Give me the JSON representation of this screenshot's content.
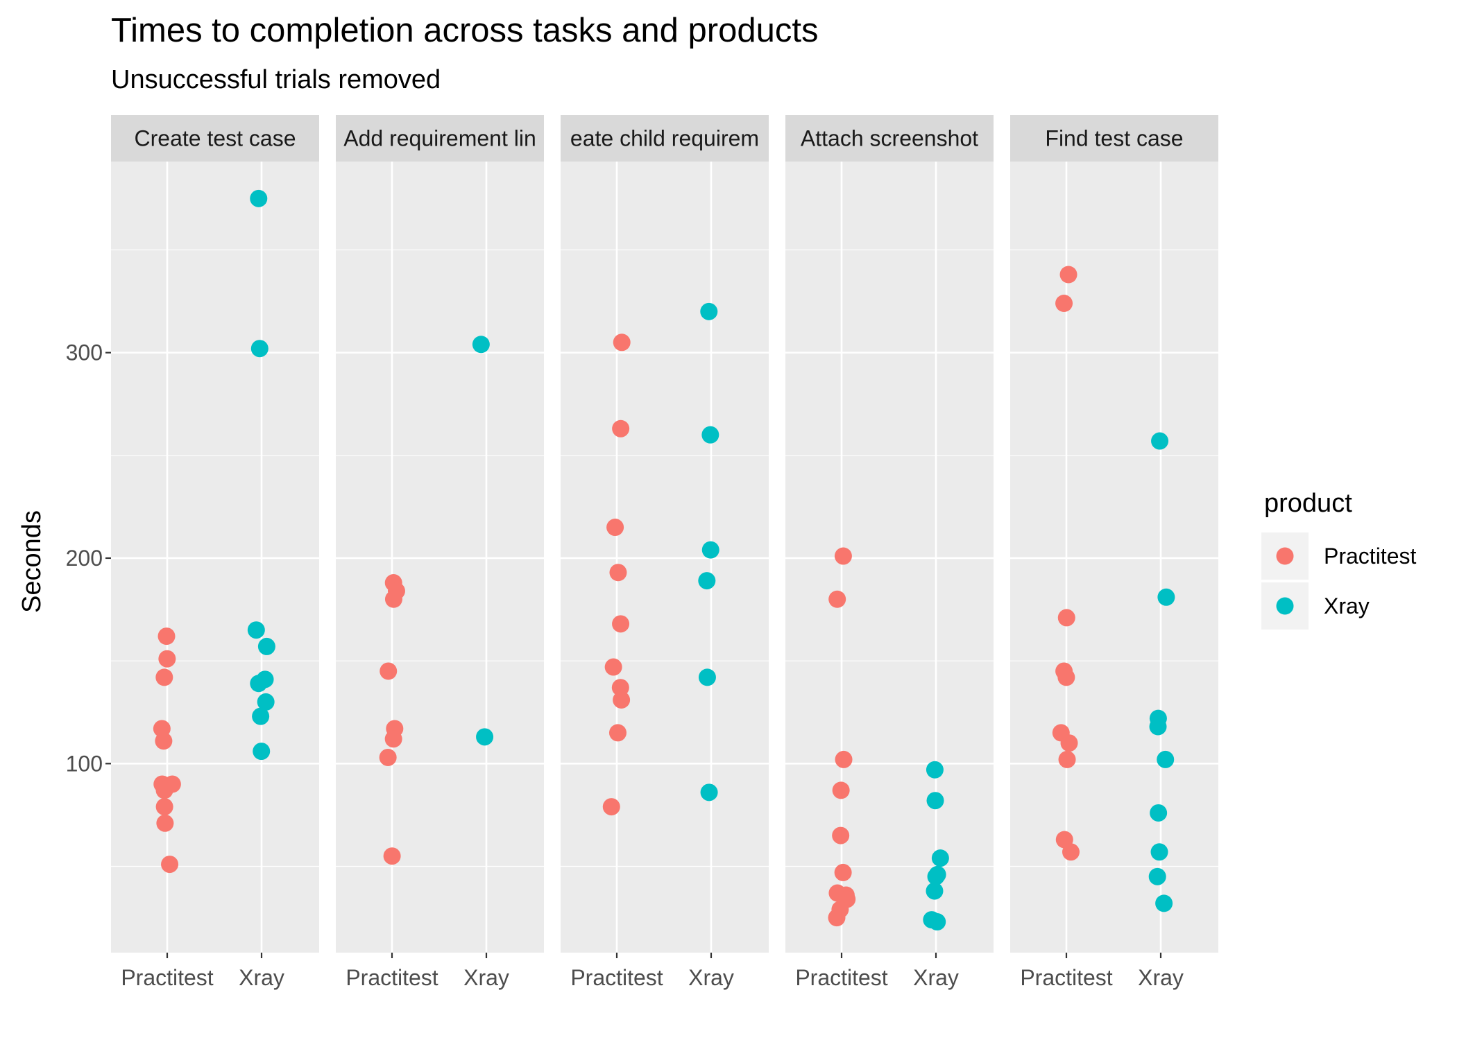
{
  "chart_data": {
    "type": "scatter",
    "title": "Times to completion across tasks and products",
    "subtitle": "Unsuccessful trials removed",
    "ylabel": "Seconds",
    "xlabel": "",
    "ylim": [
      8,
      393
    ],
    "yticks": [
      100,
      200,
      300
    ],
    "grid": true,
    "legend": {
      "title": "product",
      "position": "right",
      "entries": [
        {
          "name": "Practitest",
          "color": "#F8766D"
        },
        {
          "name": "Xray",
          "color": "#00BFC4"
        }
      ]
    },
    "categories": [
      "Practitest",
      "Xray"
    ],
    "facets": [
      {
        "label": "Create test case",
        "series": [
          {
            "name": "Practitest",
            "values": [
              162,
              151,
              142,
              117,
              111,
              90,
              90,
              87,
              79,
              71,
              51
            ]
          },
          {
            "name": "Xray",
            "values": [
              375,
              302,
              165,
              157,
              141,
              139,
              130,
              123,
              106
            ]
          }
        ]
      },
      {
        "label": "Add requirement lin",
        "series": [
          {
            "name": "Practitest",
            "values": [
              188,
              184,
              180,
              145,
              117,
              112,
              103,
              55
            ]
          },
          {
            "name": "Xray",
            "values": [
              304,
              113
            ]
          }
        ]
      },
      {
        "label": "eate child requirem",
        "series": [
          {
            "name": "Practitest",
            "values": [
              305,
              263,
              215,
              193,
              168,
              147,
              137,
              131,
              115,
              79
            ]
          },
          {
            "name": "Xray",
            "values": [
              320,
              260,
              204,
              189,
              142,
              86
            ]
          }
        ]
      },
      {
        "label": "Attach screenshot",
        "series": [
          {
            "name": "Practitest",
            "values": [
              201,
              180,
              102,
              87,
              65,
              47,
              37,
              36,
              34,
              29,
              25
            ]
          },
          {
            "name": "Xray",
            "values": [
              97,
              82,
              54,
              46,
              45,
              38,
              24,
              23
            ]
          }
        ]
      },
      {
        "label": "Find test case",
        "series": [
          {
            "name": "Practitest",
            "values": [
              338,
              324,
              171,
              145,
              142,
              115,
              110,
              102,
              63,
              57
            ]
          },
          {
            "name": "Xray",
            "values": [
              257,
              181,
              122,
              118,
              102,
              76,
              57,
              45,
              32
            ]
          }
        ]
      }
    ]
  }
}
